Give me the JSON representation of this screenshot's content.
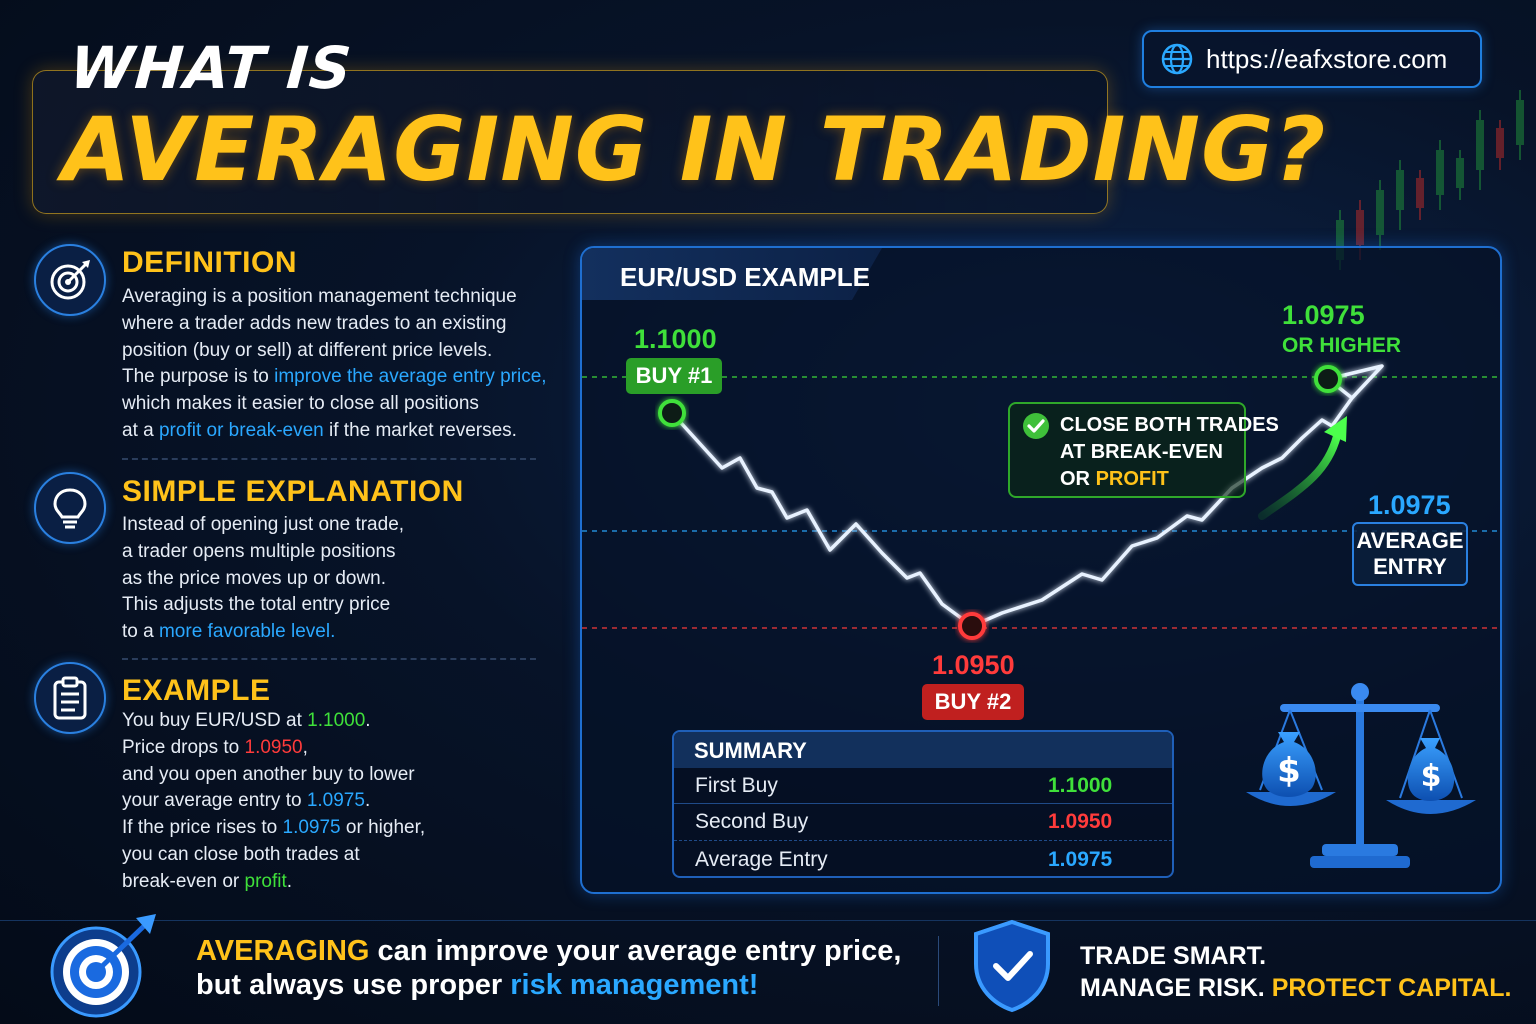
{
  "header": {
    "title_line1": "WHAT IS",
    "title_line2": "AVERAGING IN TRADING?",
    "url": "https://eafxstore.com"
  },
  "definition": {
    "title": "DEFINITION",
    "l1": "Averaging is a position management technique",
    "l2": "where a trader adds new trades to an existing",
    "l3": "position (buy or sell) at different price levels.",
    "l4a": "The purpose is to ",
    "l4b": "improve the average entry price,",
    "l5": "which makes it easier to close all positions",
    "l6a": "at a ",
    "l6b": "profit or break-even",
    "l6c": " if the market reverses."
  },
  "simple": {
    "title": "SIMPLE EXPLANATION",
    "l1": "Instead of opening just one trade,",
    "l2": "a trader opens multiple positions",
    "l3": "as the price moves up or down.",
    "l4": "This adjusts the total entry price",
    "l5a": "to a ",
    "l5b": "more favorable level."
  },
  "example": {
    "title": "EXAMPLE",
    "l1a": "You buy EUR/USD at ",
    "l1b": "1.1000",
    "l1c": ".",
    "l2a": "Price drops to ",
    "l2b": "1.0950",
    "l2c": ",",
    "l3": "and you open another buy to lower",
    "l4a": "your average entry to ",
    "l4b": "1.0975",
    "l4c": ".",
    "l5a": "If the price rises to ",
    "l5b": "1.0975",
    "l5c": " or higher,",
    "l6": "you can close both trades at",
    "l7a": "break-even or ",
    "l7b": "profit",
    "l7c": "."
  },
  "chart": {
    "tab_label": "EUR/USD EXAMPLE",
    "buy1_price": "1.1000",
    "buy1_label": "BUY #1",
    "buy2_price": "1.0950",
    "buy2_label": "BUY #2",
    "target_price": "1.0975",
    "target_label": "OR HIGHER",
    "avg_price": "1.0975",
    "avg_label_1": "AVERAGE",
    "avg_label_2": "ENTRY",
    "close_1": "CLOSE BOTH TRADES",
    "close_2": "AT BREAK-EVEN",
    "close_3a": "OR ",
    "close_3b": "PROFIT"
  },
  "summary": {
    "title": "SUMMARY",
    "rows": [
      {
        "label": "First Buy",
        "value": "1.1000",
        "color": "#3fe03a"
      },
      {
        "label": "Second Buy",
        "value": "1.0950",
        "color": "#ff3b3b"
      },
      {
        "label": "Average Entry",
        "value": "1.0975",
        "color": "#2aa8ff"
      }
    ]
  },
  "footer": {
    "l1a": "AVERAGING",
    "l1b": " can improve your average entry price,",
    "l2a": "but always use proper ",
    "l2b": "risk management!",
    "r1": "TRADE SMART.",
    "r2a": "MANAGE RISK. ",
    "r2b": "PROTECT CAPITAL."
  },
  "icons": [
    "globe-icon",
    "target-icon",
    "lightbulb-icon",
    "clipboard-icon",
    "check-icon",
    "scale-icon",
    "money-bag-icon",
    "shield-check-icon",
    "dart-target-icon"
  ],
  "colors": {
    "gold": "#ffc21a",
    "green": "#3fe03a",
    "red": "#ff3b3b",
    "blue": "#2aa8ff"
  }
}
